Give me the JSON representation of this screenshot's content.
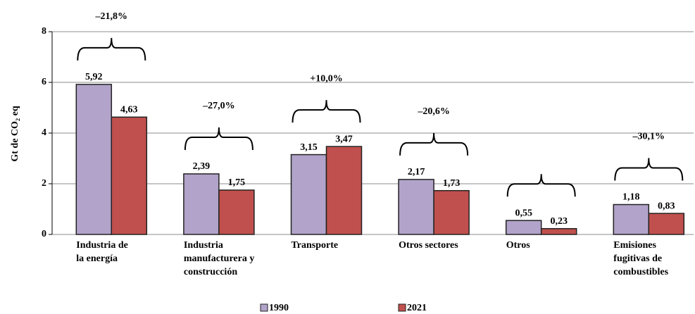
{
  "chart_data": {
    "type": "bar",
    "ylabel": "Gt de CO₂ eq",
    "categories": [
      "Industria de\nla energía",
      "Industria\nmanufacturera y\nconstrucción",
      "Transporte",
      "Otros sectores",
      "Otros",
      "Emisiones\nfugitivas de\ncombustibles"
    ],
    "series": [
      {
        "name": "1990",
        "color": "#b1a3c9",
        "values": [
          5.92,
          2.39,
          3.15,
          2.17,
          0.55,
          1.18
        ],
        "value_labels": [
          "5,92",
          "2,39",
          "3,15",
          "2,17",
          "0,55",
          "1,18"
        ]
      },
      {
        "name": "2021",
        "color": "#c0504d",
        "values": [
          4.63,
          1.75,
          3.47,
          1.73,
          0.23,
          0.83
        ],
        "value_labels": [
          "4,63",
          "1,75",
          "3,47",
          "1,73",
          "0,23",
          "0,83"
        ]
      }
    ],
    "annotations": [
      "–21,8%",
      "–27,0%",
      "+10,0%",
      "–20,6%",
      null,
      "–30,1%"
    ],
    "ylim": [
      0,
      8
    ],
    "yticks": [
      0,
      2,
      4,
      6,
      8
    ],
    "grid": true,
    "legend": "bottom"
  }
}
